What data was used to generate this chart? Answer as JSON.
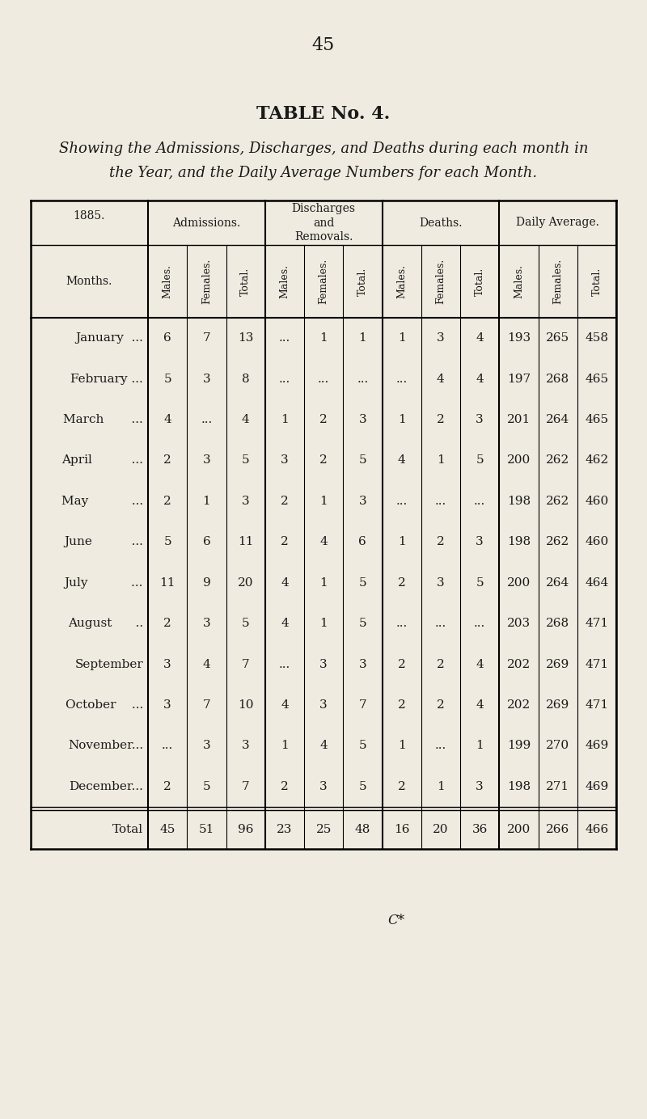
{
  "page_number": "45",
  "title": "TABLE No. 4.",
  "subtitle_line1": "Showing the Admissions, Discharges, and Deaths during each month in",
  "subtitle_line2": "the Year, and the Daily Average Numbers for each Month.",
  "year": "1885.",
  "col_groups": [
    "Admissions.",
    "Discharges\nand\nRemovals.",
    "Deaths.",
    "Daily Average."
  ],
  "sub_cols": [
    "Males.",
    "Females.",
    "Total."
  ],
  "row_label_header_top": "1885.",
  "row_label_header_bot": "Months.",
  "months": [
    "January  ...",
    "February ...",
    "March       ...",
    "April          ...",
    "May           ...",
    "June          ...",
    "July           ...",
    "August      ..",
    "September",
    "October    ...",
    "November...",
    "December..."
  ],
  "data": [
    [
      "6",
      "7",
      "13",
      "...",
      "1",
      "1",
      "1",
      "3",
      "4",
      "193",
      "265",
      "458"
    ],
    [
      "5",
      "3",
      "8",
      "...",
      "...",
      "...",
      "...",
      "4",
      "4",
      "197",
      "268",
      "465"
    ],
    [
      "4",
      "...",
      "4",
      "1",
      "2",
      "3",
      "1",
      "2",
      "3",
      "201",
      "264",
      "465"
    ],
    [
      "2",
      "3",
      "5",
      "3",
      "2",
      "5",
      "4",
      "1",
      "5",
      "200",
      "262",
      "462"
    ],
    [
      "2",
      "1",
      "3",
      "2",
      "1",
      "3",
      "...",
      "...",
      "...",
      "198",
      "262",
      "460"
    ],
    [
      "5",
      "6",
      "11",
      "2",
      "4",
      "6",
      "1",
      "2",
      "3",
      "198",
      "262",
      "460"
    ],
    [
      "11",
      "9",
      "20",
      "4",
      "1",
      "5",
      "2",
      "3",
      "5",
      "200",
      "264",
      "464"
    ],
    [
      "2",
      "3",
      "5",
      "4",
      "1",
      "5",
      "...",
      "...",
      "...",
      "203",
      "268",
      "471"
    ],
    [
      "3",
      "4",
      "7",
      "...",
      "3",
      "3",
      "2",
      "2",
      "4",
      "202",
      "269",
      "471"
    ],
    [
      "3",
      "7",
      "10",
      "4",
      "3",
      "7",
      "2",
      "2",
      "4",
      "202",
      "269",
      "471"
    ],
    [
      "...",
      "3",
      "3",
      "1",
      "4",
      "5",
      "1",
      "...",
      "1",
      "199",
      "270",
      "469"
    ],
    [
      "2",
      "5",
      "7",
      "2",
      "3",
      "5",
      "2",
      "1",
      "3",
      "198",
      "271",
      "469"
    ]
  ],
  "total_row": [
    "45",
    "51",
    "96",
    "23",
    "25",
    "48",
    "16",
    "20",
    "36",
    "200",
    "266",
    "466"
  ],
  "footer": "C*",
  "bg_color": "#f0ebe0",
  "text_color": "#1a1a1a"
}
